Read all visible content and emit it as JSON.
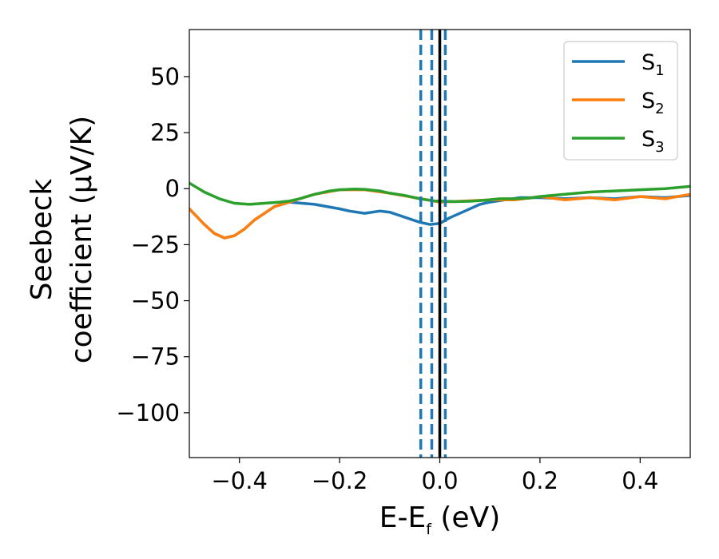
{
  "chart_data": {
    "type": "line",
    "xlabel_main": "E-E",
    "xlabel_sub": "f",
    "xlabel_unit": " (eV)",
    "ylabel_line1": "Seebeck",
    "ylabel_line2": "coefficient  (μV/K)",
    "xlim": [
      -0.5,
      0.5
    ],
    "ylim": [
      -120,
      71
    ],
    "x_ticks": [
      -0.4,
      -0.2,
      0.0,
      0.2,
      0.4
    ],
    "x_tick_labels": [
      "−0.4",
      "−0.2",
      "0.0",
      "0.2",
      "0.4"
    ],
    "y_ticks": [
      50,
      25,
      0,
      -25,
      -50,
      -75,
      -100
    ],
    "y_tick_labels": [
      "50",
      "25",
      "0",
      "−25",
      "−50",
      "−75",
      "−100"
    ],
    "grid": false,
    "legend_position": "top-right",
    "series": [
      {
        "name": "S",
        "sub": "1",
        "color": "#1f77b4",
        "x": [
          -0.5,
          -0.47,
          -0.45,
          -0.43,
          -0.41,
          -0.39,
          -0.37,
          -0.35,
          -0.33,
          -0.3,
          -0.25,
          -0.2,
          -0.18,
          -0.15,
          -0.12,
          -0.1,
          -0.08,
          -0.06,
          -0.04,
          -0.02,
          0.0,
          0.02,
          0.05,
          0.08,
          0.1,
          0.13,
          0.16,
          0.2,
          0.25,
          0.3,
          0.35,
          0.4,
          0.45,
          0.5
        ],
        "y": [
          -9,
          -16,
          -20,
          -22,
          -21,
          -18,
          -14,
          -11,
          -8,
          -6,
          -7,
          -9,
          -10,
          -11,
          -10,
          -10.5,
          -12,
          -13.5,
          -15,
          -16,
          -15.5,
          -13,
          -10,
          -7,
          -6,
          -5,
          -4,
          -4,
          -4.5,
          -4,
          -4.5,
          -3.5,
          -4,
          -3
        ]
      },
      {
        "name": "S",
        "sub": "2",
        "color": "#ff7f0e",
        "x": [
          -0.5,
          -0.47,
          -0.45,
          -0.43,
          -0.41,
          -0.39,
          -0.37,
          -0.35,
          -0.33,
          -0.3,
          -0.28,
          -0.25,
          -0.2,
          -0.15,
          -0.1,
          -0.05,
          0.0,
          0.05,
          0.1,
          0.15,
          0.2,
          0.25,
          0.3,
          0.35,
          0.4,
          0.45,
          0.5
        ],
        "y": [
          -9,
          -16,
          -20,
          -22,
          -21,
          -18,
          -14,
          -11,
          -8,
          -6,
          -4.5,
          -2.5,
          -0.5,
          -0.5,
          -2,
          -4,
          -6,
          -5.5,
          -5,
          -5,
          -3.5,
          -5,
          -4,
          -5,
          -3.5,
          -4.5,
          -2.5
        ]
      },
      {
        "name": "S",
        "sub": "3",
        "color": "#2ca02c",
        "x": [
          -0.5,
          -0.47,
          -0.44,
          -0.41,
          -0.38,
          -0.35,
          -0.32,
          -0.3,
          -0.28,
          -0.25,
          -0.22,
          -0.2,
          -0.17,
          -0.15,
          -0.12,
          -0.1,
          -0.07,
          -0.04,
          -0.01,
          0.0,
          0.03,
          0.06,
          0.09,
          0.12,
          0.15,
          0.18,
          0.2,
          0.25,
          0.3,
          0.35,
          0.4,
          0.45,
          0.5
        ],
        "y": [
          2.5,
          -1.5,
          -4.5,
          -6.5,
          -7,
          -6.5,
          -6,
          -5.5,
          -4.5,
          -2.5,
          -1,
          -0.5,
          -0.2,
          -0.3,
          -1,
          -2,
          -3,
          -4.5,
          -5.5,
          -5.5,
          -5.8,
          -5.6,
          -5.2,
          -4.5,
          -4.5,
          -4.2,
          -3.5,
          -2.5,
          -1.5,
          -1,
          -0.5,
          0,
          1
        ]
      }
    ],
    "vlines": [
      {
        "x": 0.0,
        "style": "solid",
        "color": "#000000"
      },
      {
        "x": -0.038,
        "style": "dashed",
        "color": "#1f77b4"
      },
      {
        "x": -0.016,
        "style": "dashed",
        "color": "#1f77b4"
      },
      {
        "x": 0.011,
        "style": "dashed",
        "color": "#1f77b4"
      }
    ]
  }
}
